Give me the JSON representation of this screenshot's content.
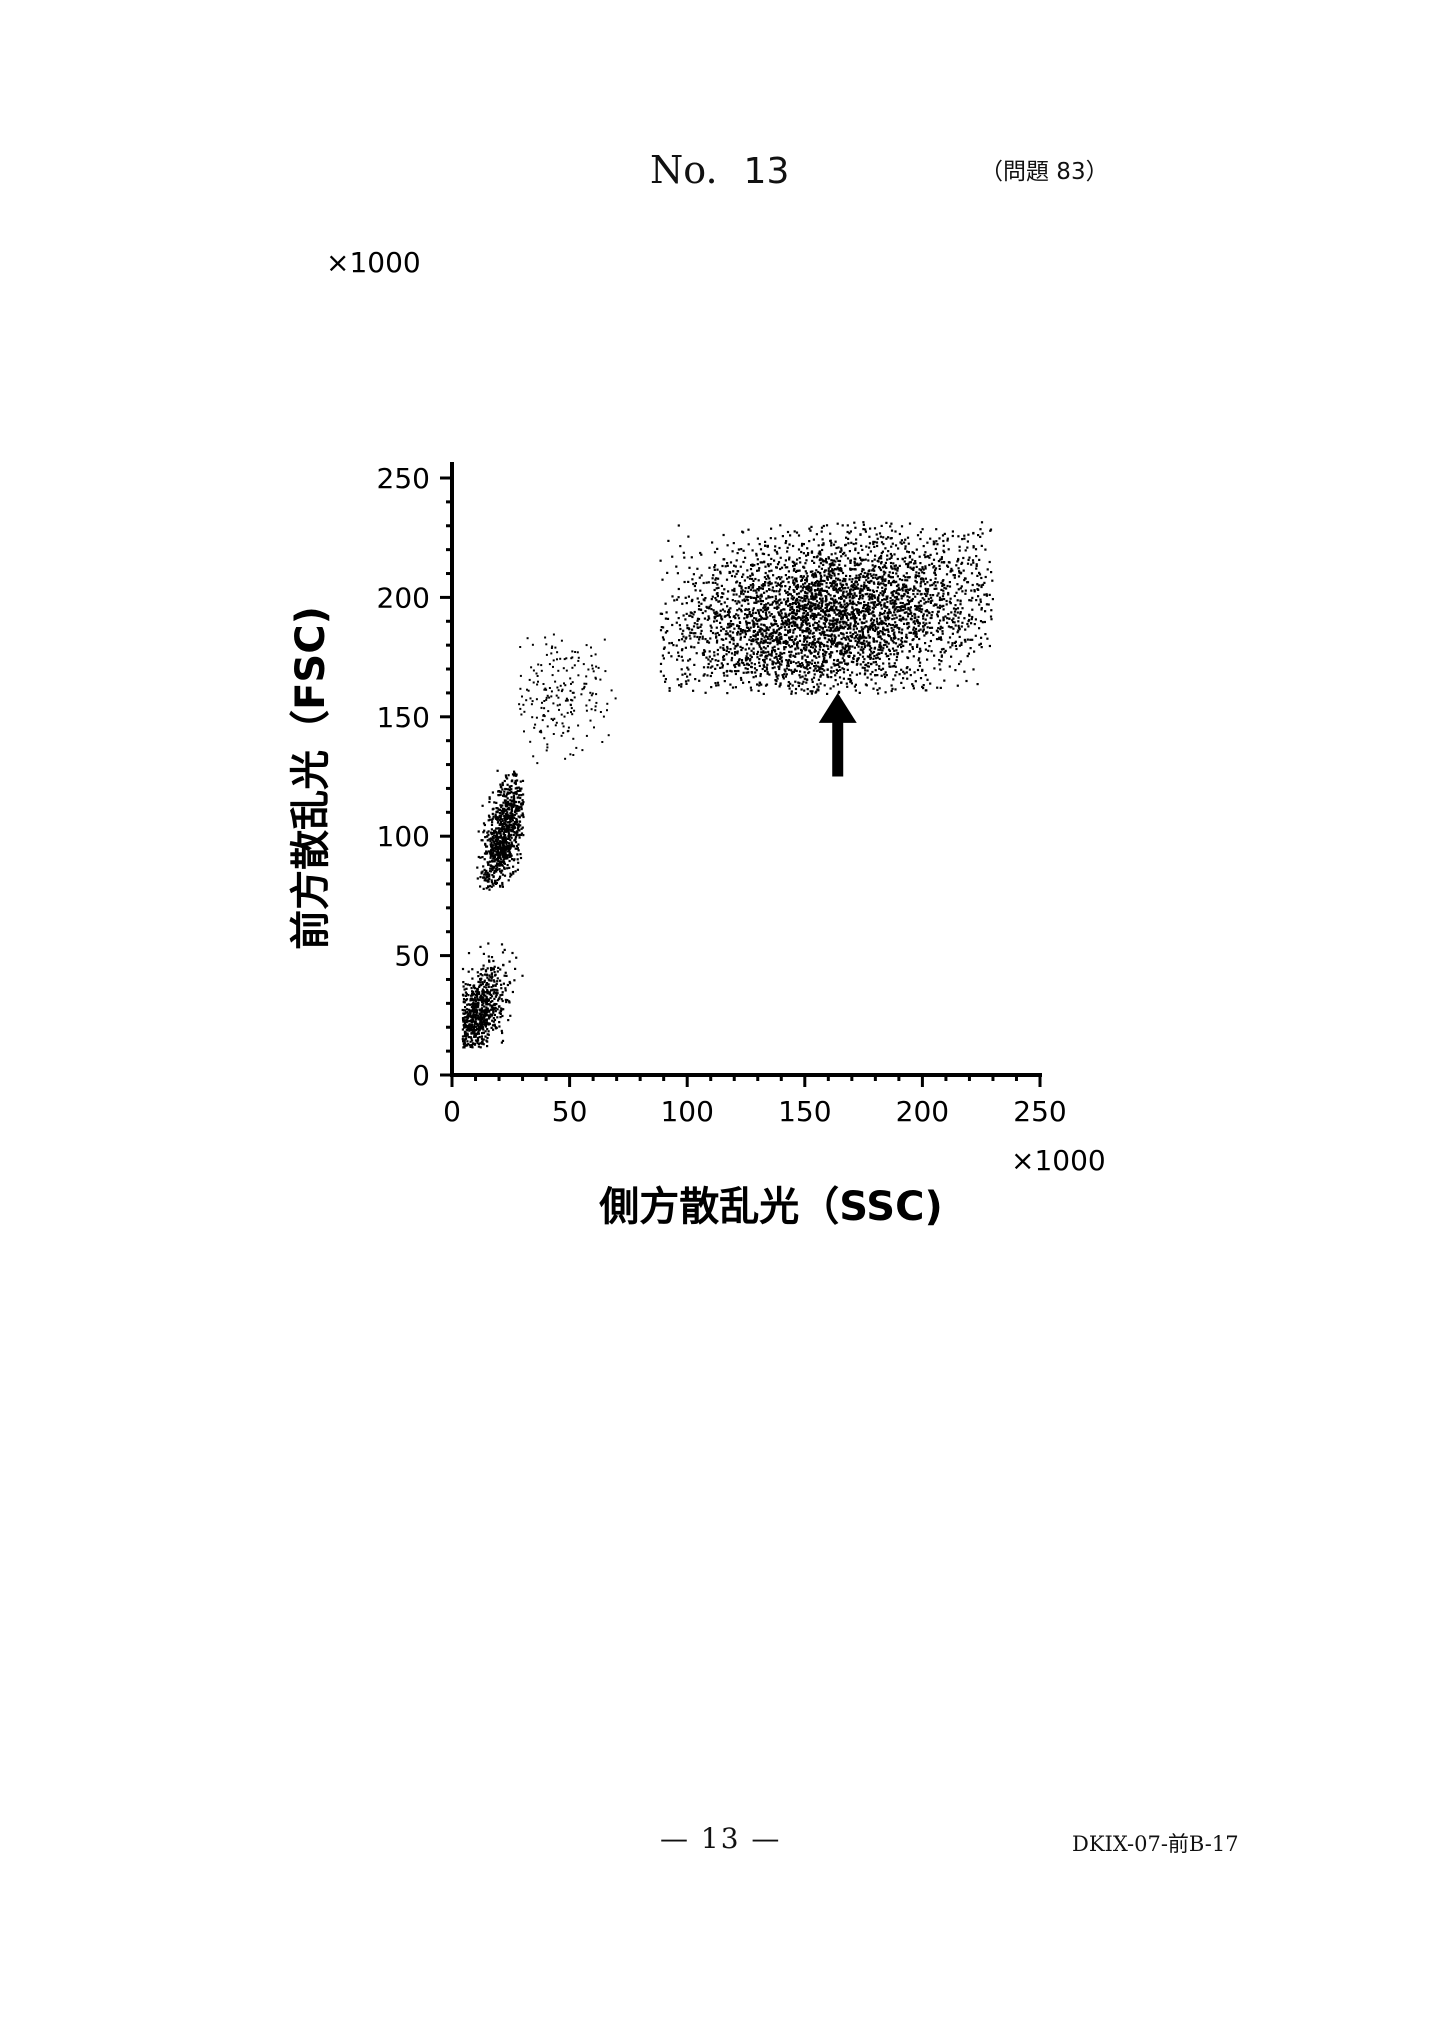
{
  "header": {
    "no_label": "No.",
    "no_value": "13",
    "question_ref": "（問題 83）"
  },
  "footer": {
    "page": "— 13 —",
    "code": "DKIX-07-前B-17"
  },
  "chart_data": {
    "type": "scatter",
    "xlabel": "側方散乱光（SSC)",
    "ylabel": "前方散乱光（FSC)",
    "x_multiplier_label": "×1000",
    "y_multiplier_label": "×1000",
    "xlim": [
      0,
      250
    ],
    "ylim": [
      0,
      250
    ],
    "xticks": [
      "0",
      "50",
      "100",
      "150",
      "200",
      "250"
    ],
    "yticks": [
      "0",
      "50",
      "100",
      "150",
      "200",
      "250"
    ],
    "marker_color": "#000000",
    "clusters": [
      {
        "x_center": 10,
        "y_center": 25,
        "x_range": [
          4,
          30
        ],
        "y_range": [
          12,
          57
        ],
        "density": "high",
        "points": 900
      },
      {
        "x_center": 22,
        "y_center": 102,
        "x_range": [
          10,
          30
        ],
        "y_range": [
          78,
          128
        ],
        "density": "high",
        "points": 900
      },
      {
        "x_center": 45,
        "y_center": 160,
        "x_range": [
          28,
          75
        ],
        "y_range": [
          130,
          185
        ],
        "density": "low",
        "points": 220
      },
      {
        "x_center": 160,
        "y_center": 193,
        "x_range": [
          88,
          230
        ],
        "y_range": [
          160,
          232
        ],
        "density": "high",
        "points": 4200
      }
    ],
    "annotation": {
      "type": "arrow",
      "direction": "up",
      "x_tail": 164,
      "y_tail": 125,
      "x_head": 164,
      "y_head": 160
    }
  }
}
